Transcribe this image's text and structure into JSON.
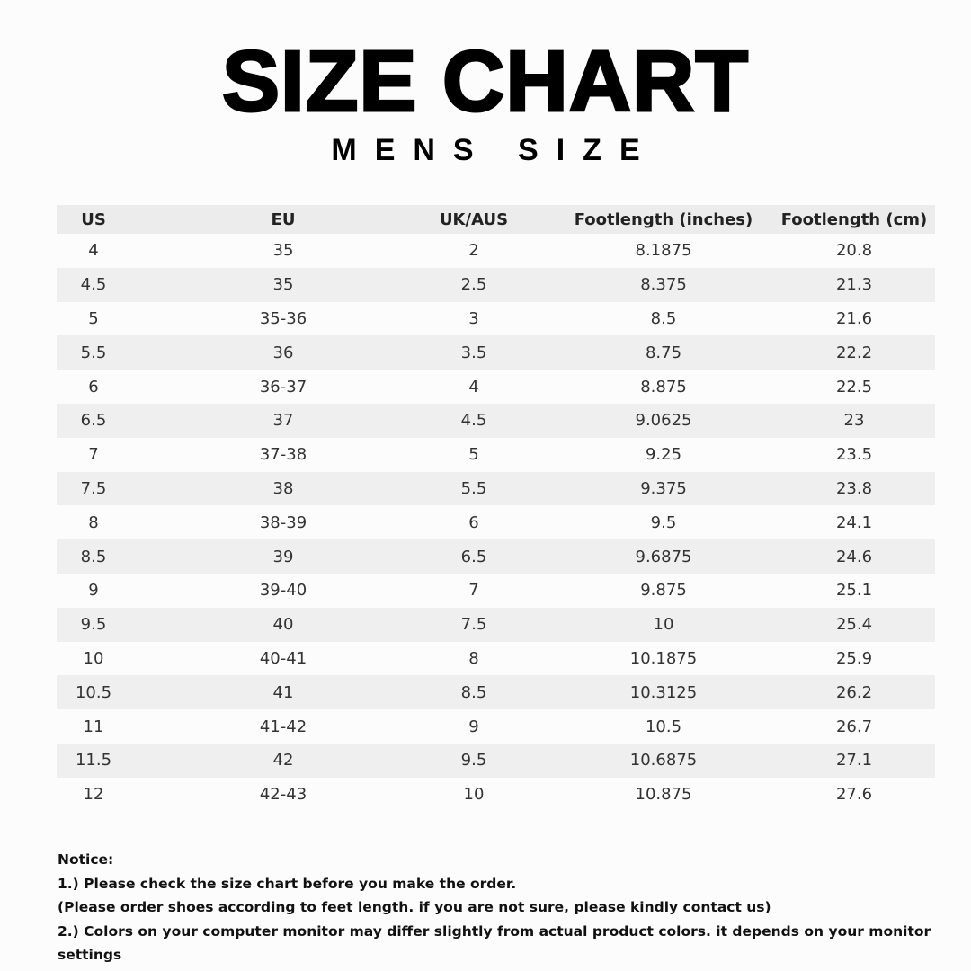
{
  "header": {
    "title": "SIZE CHART",
    "subtitle": "MENS SIZE"
  },
  "table": {
    "columns": [
      "US",
      "EU",
      "UK/AUS",
      "Footlength (inches)",
      "Footlength (cm)"
    ],
    "rows": [
      [
        "4",
        "35",
        "2",
        "8.1875",
        "20.8"
      ],
      [
        "4.5",
        "35",
        "2.5",
        "8.375",
        "21.3"
      ],
      [
        "5",
        "35-36",
        "3",
        "8.5",
        "21.6"
      ],
      [
        "5.5",
        "36",
        "3.5",
        "8.75",
        "22.2"
      ],
      [
        "6",
        "36-37",
        "4",
        "8.875",
        "22.5"
      ],
      [
        "6.5",
        "37",
        "4.5",
        "9.0625",
        "23"
      ],
      [
        "7",
        "37-38",
        "5",
        "9.25",
        "23.5"
      ],
      [
        "7.5",
        "38",
        "5.5",
        "9.375",
        "23.8"
      ],
      [
        "8",
        "38-39",
        "6",
        "9.5",
        "24.1"
      ],
      [
        "8.5",
        "39",
        "6.5",
        "9.6875",
        "24.6"
      ],
      [
        "9",
        "39-40",
        "7",
        "9.875",
        "25.1"
      ],
      [
        "9.5",
        "40",
        "7.5",
        "10",
        "25.4"
      ],
      [
        "10",
        "40-41",
        "8",
        "10.1875",
        "25.9"
      ],
      [
        "10.5",
        "41",
        "8.5",
        "10.3125",
        "26.2"
      ],
      [
        "11",
        "41-42",
        "9",
        "10.5",
        "26.7"
      ],
      [
        "11.5",
        "42",
        "9.5",
        "10.6875",
        "27.1"
      ],
      [
        "12",
        "42-43",
        "10",
        "10.875",
        "27.6"
      ]
    ]
  },
  "notice": {
    "heading": "Notice:",
    "lines": [
      "1.) Please check the size chart before you make the order.",
      "(Please order shoes according to feet length. if you are not sure, please kindly contact us)",
      "2.) Colors on your computer monitor may differ slightly from actual product colors. it depends on your monitor settings"
    ]
  }
}
